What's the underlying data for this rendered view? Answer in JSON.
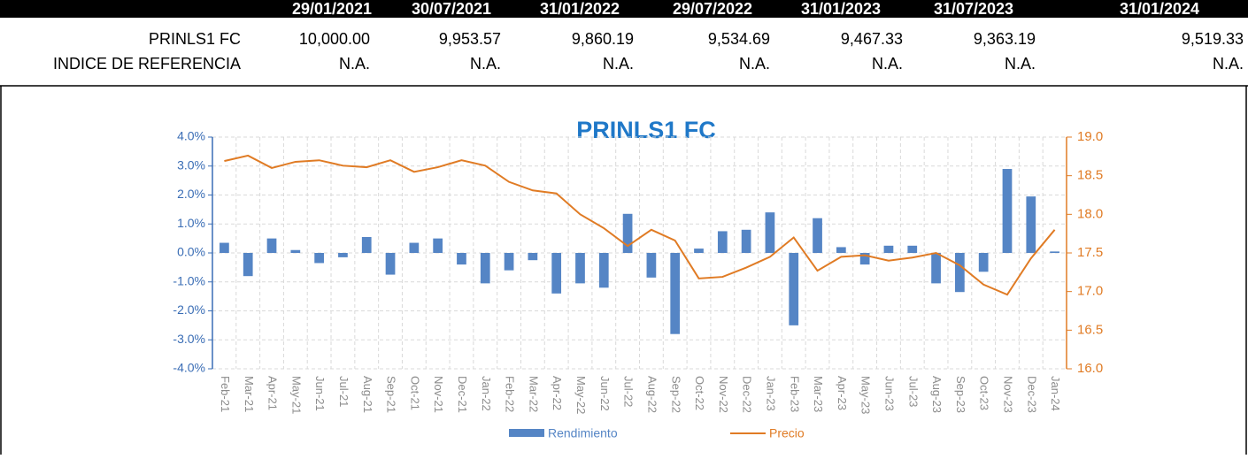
{
  "table": {
    "columns": [
      "29/01/2021",
      "30/07/2021",
      "31/01/2022",
      "29/07/2022",
      "31/01/2023",
      "31/07/2023",
      "31/01/2024"
    ],
    "rows": [
      {
        "label": "PRINLS1 FC",
        "values": [
          "10,000.00",
          "9,953.57",
          "9,860.19",
          "9,534.69",
          "9,467.33",
          "9,363.19",
          "9,519.33"
        ]
      },
      {
        "label": "INDICE DE REFERENCIA",
        "values": [
          "N.A.",
          "N.A.",
          "N.A.",
          "N.A.",
          "N.A.",
          "N.A.",
          "N.A."
        ]
      }
    ]
  },
  "chart_data": {
    "type": "bar",
    "title": "PRINLS1 FC",
    "categories": [
      "Feb-21",
      "Mar-21",
      "Apr-21",
      "May-21",
      "Jun-21",
      "Jul-21",
      "Aug-21",
      "Sep-21",
      "Oct-21",
      "Nov-21",
      "Dec-21",
      "Jan-22",
      "Feb-22",
      "Mar-22",
      "Apr-22",
      "May-22",
      "Jun-22",
      "Jul-22",
      "Aug-22",
      "Sep-22",
      "Oct-22",
      "Nov-22",
      "Dec-22",
      "Jan-23",
      "Feb-23",
      "Mar-23",
      "Apr-23",
      "May-23",
      "Jun-23",
      "Jul-23",
      "Aug-23",
      "Sep-23",
      "Oct-23",
      "Nov-23",
      "Dec-23",
      "Jan-24"
    ],
    "series": [
      {
        "name": "Rendimiento",
        "type": "bar",
        "color": "#5585c5",
        "values": [
          0.35,
          -0.8,
          0.5,
          0.1,
          -0.35,
          -0.15,
          0.55,
          -0.75,
          0.35,
          0.5,
          -0.4,
          -1.05,
          -0.6,
          -0.25,
          -1.4,
          -1.05,
          -1.2,
          1.35,
          -0.85,
          -2.8,
          0.15,
          0.75,
          0.8,
          1.4,
          -2.5,
          1.2,
          0.2,
          -0.4,
          0.25,
          0.25,
          -1.05,
          -1.35,
          -0.65,
          2.9,
          1.95,
          0.05
        ]
      },
      {
        "name": "Precio",
        "type": "line",
        "axis": "y2",
        "color": "#e07b24",
        "values": [
          18.69,
          18.76,
          18.6,
          18.68,
          18.7,
          18.63,
          18.61,
          18.7,
          18.55,
          18.61,
          18.7,
          18.63,
          18.42,
          18.31,
          18.27,
          18.0,
          17.82,
          17.59,
          17.8,
          17.66,
          17.17,
          17.19,
          17.31,
          17.45,
          17.7,
          17.27,
          17.45,
          17.47,
          17.4,
          17.44,
          17.5,
          17.34,
          17.09,
          16.96,
          17.43,
          17.8
        ]
      }
    ],
    "ylim": [
      -4,
      4
    ],
    "yticks": [
      {
        "value": -4,
        "label": "-4.0%"
      },
      {
        "value": -3,
        "label": "-3.0%"
      },
      {
        "value": -2,
        "label": "-2.0%"
      },
      {
        "value": -1,
        "label": "-1.0%"
      },
      {
        "value": 0,
        "label": "0.0%"
      },
      {
        "value": 1,
        "label": "1.0%"
      },
      {
        "value": 2,
        "label": "2.0%"
      },
      {
        "value": 3,
        "label": "3.0%"
      },
      {
        "value": 4,
        "label": "4.0%"
      }
    ],
    "y2lim": [
      16,
      19
    ],
    "y2ticks": [
      {
        "value": 16,
        "label": "16.0"
      },
      16.5,
      {
        "value": 17,
        "label": "17.0"
      },
      17.5,
      {
        "value": 18,
        "label": "18.0"
      },
      18.5,
      {
        "value": 19,
        "label": "19.0"
      }
    ],
    "grid": true,
    "legend": "bottom"
  }
}
